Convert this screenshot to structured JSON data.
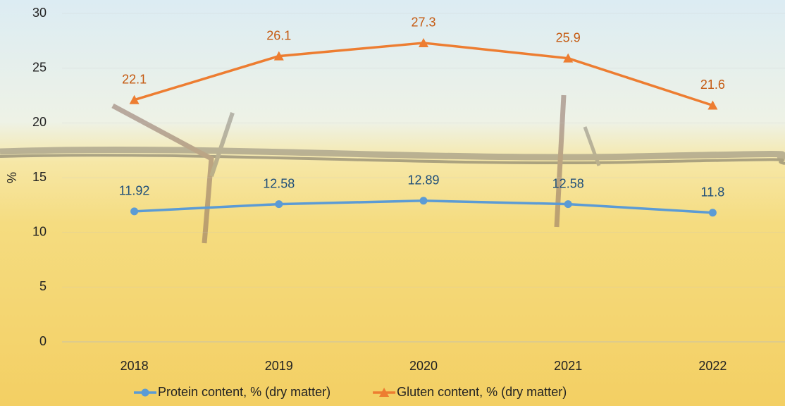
{
  "chart_data": {
    "type": "line",
    "categories": [
      "2018",
      "2019",
      "2020",
      "2021",
      "2022"
    ],
    "y_label": "%",
    "ylim": [
      0,
      30
    ],
    "yticks": [
      0,
      5,
      10,
      15,
      20,
      25,
      30
    ],
    "grid": true,
    "legend": "bottom",
    "series": [
      {
        "name": "Protein content, % (dry matter)",
        "color": "#5b9bd5",
        "label_color": "#1f4e79",
        "marker": "circle",
        "values": [
          11.92,
          12.58,
          12.89,
          12.58,
          11.8
        ]
      },
      {
        "name": "Gluten content, % (dry matter)",
        "color": "#ed7d31",
        "label_color": "#c55a11",
        "marker": "triangle",
        "values": [
          22.1,
          26.1,
          27.3,
          25.9,
          21.6
        ]
      }
    ]
  }
}
